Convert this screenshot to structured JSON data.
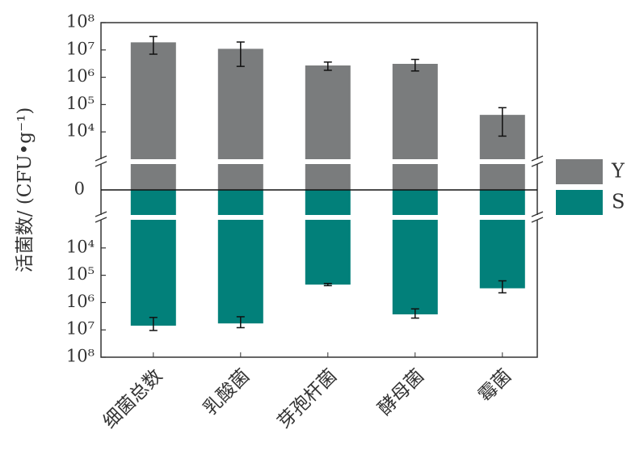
{
  "chart_data": {
    "type": "bar",
    "ylabel": "活菌数/ (CFU•g⁻¹)",
    "categories": [
      "细菌总数",
      "乳酸菌",
      "芽孢杆菌",
      "酵母菌",
      "霉菌"
    ],
    "log_scale": true,
    "ylim": [
      1000,
      100000000
    ],
    "yticks": [
      {
        "value": 10000,
        "label": "10⁴"
      },
      {
        "value": 100000,
        "label": "10⁵"
      },
      {
        "value": 1000000,
        "label": "10⁶"
      },
      {
        "value": 10000000,
        "label": "10⁷"
      },
      {
        "value": 100000000,
        "label": "10⁸"
      }
    ],
    "baseline_tick": 0,
    "legend": "right",
    "series": [
      {
        "name": "Y",
        "color": "#7a7c7d",
        "direction": "up",
        "values": [
          19000000,
          11000000,
          2700000,
          3100000,
          42000
        ],
        "errors": [
          12000000,
          8500000,
          900000,
          1400000,
          35000
        ]
      },
      {
        "name": "S",
        "color": "#02807a",
        "direction": "down",
        "values": [
          7000000,
          5800000,
          220000,
          2700000,
          300000
        ],
        "errors": [
          3500000,
          2500000,
          20000,
          1000000,
          140000
        ]
      }
    ]
  }
}
